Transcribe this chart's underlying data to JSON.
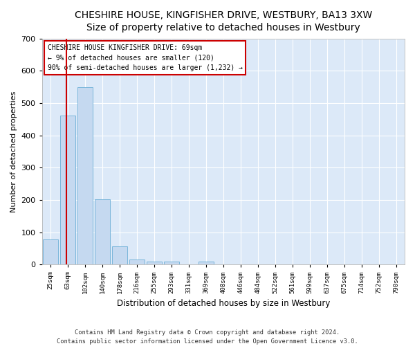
{
  "title": "CHESHIRE HOUSE, KINGFISHER DRIVE, WESTBURY, BA13 3XW",
  "subtitle": "Size of property relative to detached houses in Westbury",
  "xlabel": "Distribution of detached houses by size in Westbury",
  "ylabel": "Number of detached properties",
  "bar_labels": [
    "25sqm",
    "63sqm",
    "102sqm",
    "140sqm",
    "178sqm",
    "216sqm",
    "255sqm",
    "293sqm",
    "331sqm",
    "369sqm",
    "408sqm",
    "446sqm",
    "484sqm",
    "522sqm",
    "561sqm",
    "599sqm",
    "637sqm",
    "675sqm",
    "714sqm",
    "752sqm",
    "790sqm"
  ],
  "bar_values": [
    78,
    462,
    548,
    203,
    57,
    15,
    9,
    9,
    0,
    9,
    0,
    0,
    0,
    0,
    0,
    0,
    0,
    0,
    0,
    0,
    0
  ],
  "bar_color": "#c5d9f0",
  "bar_edge_color": "#6baed6",
  "vline_color": "#cc0000",
  "vline_pos": 1.42,
  "ylim": [
    0,
    700
  ],
  "yticks": [
    0,
    100,
    200,
    300,
    400,
    500,
    600,
    700
  ],
  "annotation_text": "CHESHIRE HOUSE KINGFISHER DRIVE: 69sqm\n← 9% of detached houses are smaller (120)\n90% of semi-detached houses are larger (1,232) →",
  "annotation_box_color": "#ffffff",
  "annotation_box_edge_color": "#cc0000",
  "footer_line1": "Contains HM Land Registry data © Crown copyright and database right 2024.",
  "footer_line2": "Contains public sector information licensed under the Open Government Licence v3.0.",
  "fig_bg_color": "#ffffff",
  "plot_bg_color": "#dce9f8",
  "grid_color": "#ffffff",
  "title_fontsize": 10,
  "subtitle_fontsize": 9
}
